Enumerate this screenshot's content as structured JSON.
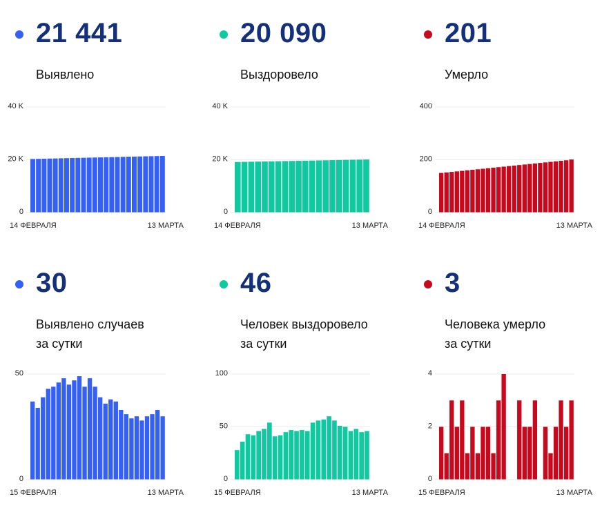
{
  "colors": {
    "blue": "#3460f5",
    "green": "#0fc9a0",
    "red": "#c8081d",
    "value_text": "#14307a"
  },
  "panels": [
    {
      "value": "21 441",
      "label": "Выявлено",
      "color": "#3460f5"
    },
    {
      "value": "20 090",
      "label": "Выздоровело",
      "color": "#0fc9a0"
    },
    {
      "value": "201",
      "label": "Умерло",
      "color": "#c8081d"
    },
    {
      "value": "30",
      "label_line1": "Выявлено случаев",
      "label_line2": "за сутки",
      "color": "#3460f5"
    },
    {
      "value": "46",
      "label_line1": "Человек выздоровело",
      "label_line2": "за сутки",
      "color": "#0fc9a0"
    },
    {
      "value": "3",
      "label_line1": "Человека умерло",
      "label_line2": "за сутки",
      "color": "#c8081d"
    }
  ],
  "chart_data": [
    {
      "type": "bar",
      "ytick_labels": [
        "0",
        "20 K",
        "40 K"
      ],
      "yticks": [
        0,
        20000,
        40000
      ],
      "ylim": [
        0,
        40000
      ],
      "x_start": "14 ФЕВРАЛЯ",
      "x_end": "13 МАРТА",
      "color": "#3460f5",
      "values": [
        20300,
        20350,
        20400,
        20450,
        20500,
        20550,
        20600,
        20650,
        20700,
        20750,
        20800,
        20850,
        20900,
        20950,
        21000,
        21050,
        21100,
        21150,
        21200,
        21250,
        21300,
        21350,
        21400,
        21441
      ]
    },
    {
      "type": "bar",
      "ytick_labels": [
        "0",
        "20 K",
        "40 K"
      ],
      "yticks": [
        0,
        20000,
        40000
      ],
      "ylim": [
        0,
        40000
      ],
      "x_start": "14 ФЕВРАЛЯ",
      "x_end": "13 МАРТА",
      "color": "#0fc9a0",
      "values": [
        19150,
        19200,
        19250,
        19300,
        19350,
        19400,
        19450,
        19500,
        19550,
        19600,
        19650,
        19700,
        19750,
        19800,
        19850,
        19900,
        19950,
        20000,
        20050,
        20090
      ]
    },
    {
      "type": "bar",
      "ytick_labels": [
        "0",
        "200",
        "400"
      ],
      "yticks": [
        0,
        200,
        400
      ],
      "ylim": [
        0,
        400
      ],
      "x_start": "14 ФЕВРАЛЯ",
      "x_end": "13 МАРТА",
      "color": "#c8081d",
      "values": [
        150,
        152,
        154,
        156,
        158,
        160,
        162,
        164,
        166,
        168,
        170,
        172,
        174,
        176,
        178,
        180,
        182,
        184,
        186,
        188,
        190,
        192,
        194,
        196,
        198,
        201
      ]
    },
    {
      "type": "bar",
      "ytick_labels": [
        "0",
        "50"
      ],
      "yticks": [
        0,
        50
      ],
      "ylim": [
        0,
        50
      ],
      "x_start": "15 ФЕВРАЛЯ",
      "x_end": "13 МАРТА",
      "color": "#3460f5",
      "values": [
        37,
        34,
        39,
        43,
        44,
        46,
        48,
        45,
        47,
        49,
        44,
        48,
        44,
        39,
        36,
        38,
        37,
        33,
        31,
        29,
        30,
        28,
        30,
        31,
        33,
        30
      ]
    },
    {
      "type": "bar",
      "ytick_labels": [
        "0",
        "50",
        "100"
      ],
      "yticks": [
        0,
        50,
        100
      ],
      "ylim": [
        0,
        100
      ],
      "x_start": "15 ФЕВРАЛЯ",
      "x_end": "13 МАРТА",
      "color": "#0fc9a0",
      "values": [
        28,
        36,
        43,
        42,
        46,
        48,
        54,
        41,
        42,
        45,
        47,
        46,
        47,
        46,
        54,
        56,
        57,
        60,
        56,
        51,
        50,
        46,
        48,
        45,
        46
      ]
    },
    {
      "type": "bar",
      "ytick_labels": [
        "0",
        "2",
        "4"
      ],
      "yticks": [
        0,
        2,
        4
      ],
      "ylim": [
        0,
        4
      ],
      "x_start": "15 ФЕВРАЛЯ",
      "x_end": "13 МАРТА",
      "color": "#c8081d",
      "values": [
        2,
        1,
        3,
        2,
        3,
        1,
        2,
        1,
        2,
        2,
        1,
        3,
        4,
        0,
        0,
        3,
        2,
        2,
        3,
        0,
        2,
        1,
        2,
        3,
        2,
        3
      ]
    }
  ]
}
